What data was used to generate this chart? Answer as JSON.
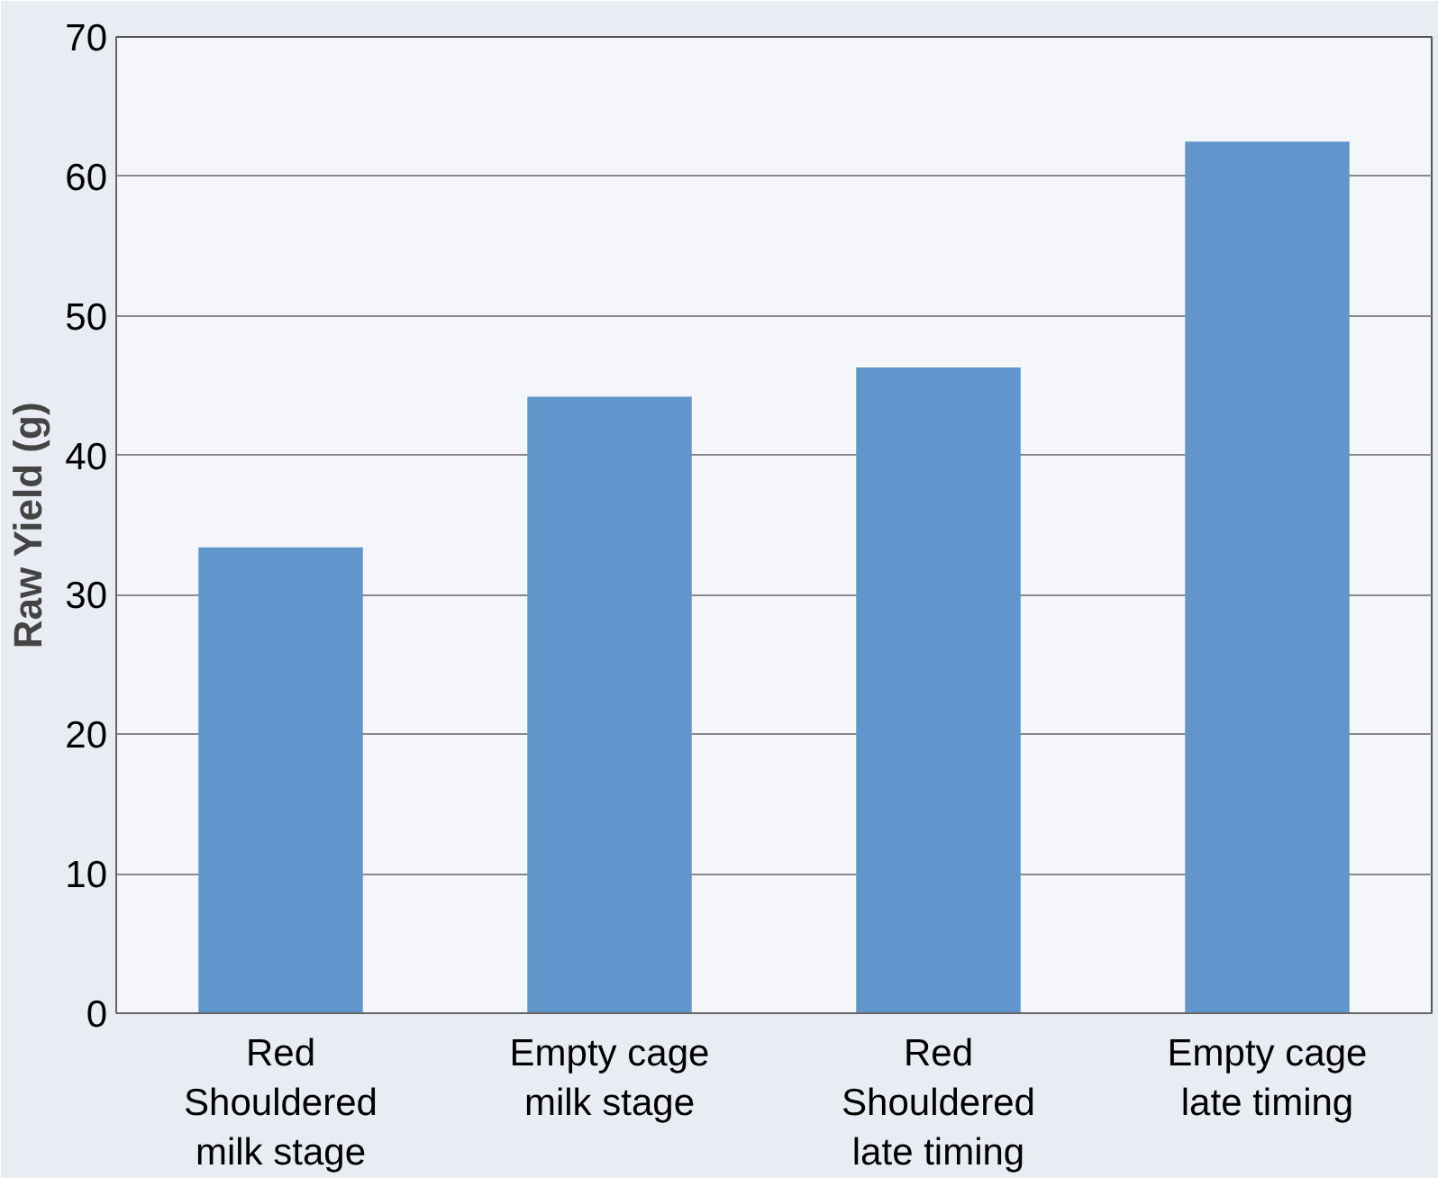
{
  "chart_data": {
    "type": "bar",
    "ylabel": "Raw Yield (g)",
    "categories": [
      "Red Shouldered milk stage",
      "Empty cage milk stage",
      "Red Shouldered late timing",
      "Empty cage late timing"
    ],
    "values": [
      33.4,
      44.2,
      46.3,
      62.5
    ],
    "color": "#6096cb",
    "ylim": [
      0,
      70
    ],
    "yticks": [
      0,
      10,
      20,
      30,
      40,
      50,
      60,
      70
    ],
    "grid": "y"
  }
}
